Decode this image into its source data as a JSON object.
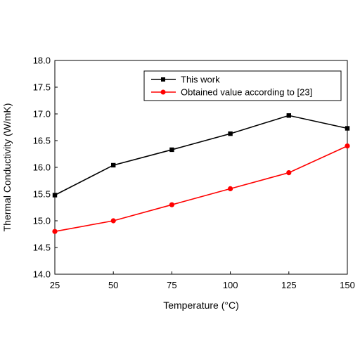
{
  "chart_data": {
    "type": "line",
    "title": "",
    "xlabel": "Temperature (°C)",
    "ylabel": "Thermal Conductivity (W/mK)",
    "x": [
      25,
      50,
      75,
      100,
      125,
      150
    ],
    "xlim": [
      25,
      150
    ],
    "ylim": [
      14.0,
      18.0
    ],
    "xticks": [
      "25",
      "50",
      "75",
      "100",
      "125",
      "150"
    ],
    "yticks": [
      "14.0",
      "14.5",
      "15.0",
      "15.5",
      "16.0",
      "16.5",
      "17.0",
      "17.5",
      "18.0"
    ],
    "grid": false,
    "legend_position": "top-right",
    "series": [
      {
        "name": "This work",
        "marker": "square",
        "color": "#000000",
        "values": [
          15.48,
          16.04,
          16.33,
          16.63,
          16.97,
          16.73
        ]
      },
      {
        "name": "Obtained value according to [23]",
        "marker": "circle",
        "color": "#ff0000",
        "values": [
          14.8,
          15.0,
          15.3,
          15.6,
          15.9,
          16.4
        ]
      }
    ]
  }
}
